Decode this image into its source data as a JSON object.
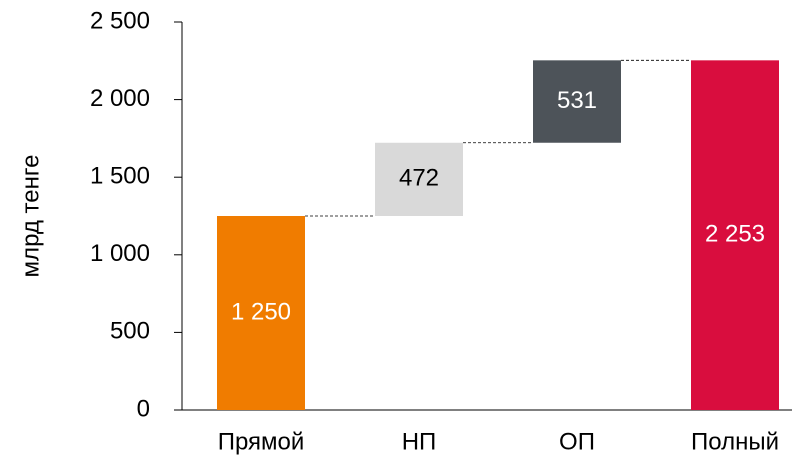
{
  "chart_data": {
    "type": "waterfall",
    "y_label": "млрд тенге",
    "categories": [
      "Прямой",
      "НП",
      "ОП",
      "Полный"
    ],
    "values": [
      1250,
      472,
      531,
      2253
    ],
    "value_labels": [
      "1 250",
      "472",
      "531",
      "2 253"
    ],
    "colors": [
      "#f07c00",
      "#d9d9d9",
      "#4d5359",
      "#d90d3e"
    ],
    "ylim": [
      0,
      2500
    ],
    "yticks": [
      0,
      500,
      {
        "value": 1000,
        "label": "1 000"
      },
      {
        "value": 1500,
        "label": "1 500"
      },
      {
        "value": 2000,
        "label": "2 000"
      },
      {
        "value": 2500,
        "label": "2 500"
      }
    ],
    "grid": false
  }
}
